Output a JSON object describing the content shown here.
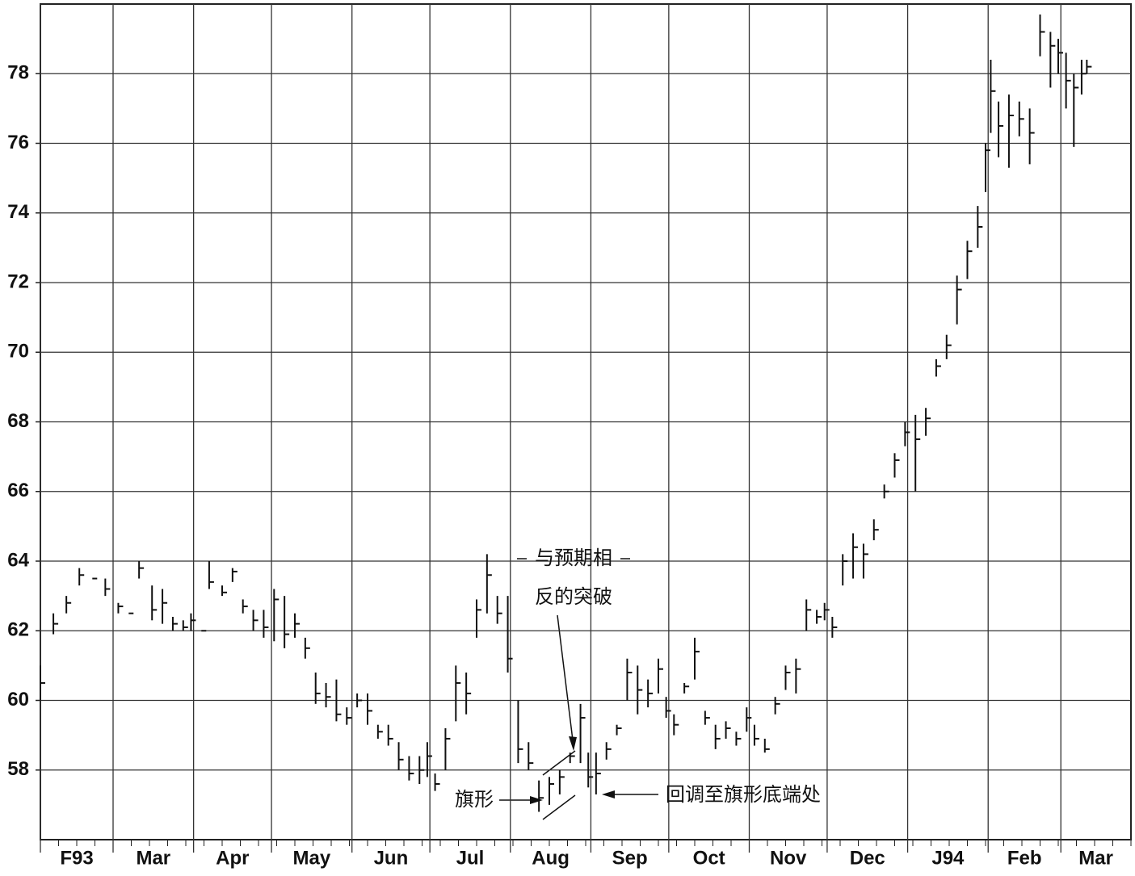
{
  "chart_data": {
    "type": "ohlc",
    "xlim": [
      0,
      420
    ],
    "ylim": [
      56,
      80
    ],
    "yticks": [
      58,
      60,
      62,
      64,
      66,
      68,
      70,
      72,
      74,
      76,
      78
    ],
    "xticks": [
      {
        "value": 0,
        "label": "F93"
      },
      {
        "value": 28,
        "label": "Mar"
      },
      {
        "value": 59,
        "label": "Apr"
      },
      {
        "value": 89,
        "label": "May"
      },
      {
        "value": 120,
        "label": "Jun"
      },
      {
        "value": 150,
        "label": "Jul"
      },
      {
        "value": 181,
        "label": "Aug"
      },
      {
        "value": 212,
        "label": "Sep"
      },
      {
        "value": 242,
        "label": "Oct"
      },
      {
        "value": 273,
        "label": "Nov"
      },
      {
        "value": 303,
        "label": "Dec"
      },
      {
        "value": 334,
        "label": "J94"
      },
      {
        "value": 365,
        "label": "Feb"
      },
      {
        "value": 393,
        "label": "Mar"
      }
    ],
    "grid": true,
    "color": "#111111",
    "x": [
      0,
      5,
      10,
      15,
      20,
      25,
      30,
      34,
      38,
      43,
      47,
      51,
      55,
      58,
      62,
      65,
      70,
      74,
      78,
      82,
      86,
      90,
      94,
      98,
      102,
      106,
      110,
      114,
      118,
      122,
      126,
      130,
      134,
      138,
      142,
      146,
      149,
      152,
      156,
      160,
      164,
      168,
      172,
      176,
      180,
      184,
      188,
      192,
      196,
      200,
      204,
      208,
      211,
      214,
      218,
      222,
      226,
      230,
      234,
      238,
      241,
      244,
      248,
      252,
      256,
      260,
      264,
      268,
      272,
      275,
      279,
      283,
      287,
      291,
      295,
      299,
      302,
      305,
      309,
      313,
      317,
      321,
      325,
      329,
      333,
      337,
      341,
      345,
      349,
      353,
      357,
      361,
      364,
      366,
      369,
      373,
      377,
      381,
      385,
      389,
      392,
      395,
      398,
      401,
      403
    ],
    "high": [
      61,
      62.5,
      63,
      63.8,
      63.5,
      63.5,
      62.8,
      62.5,
      64,
      63.3,
      63.2,
      62.4,
      62.3,
      62.5,
      62,
      64,
      63.3,
      63.8,
      62.9,
      62.6,
      62.6,
      63.2,
      63,
      62.5,
      61.8,
      60.8,
      60.5,
      60.6,
      59.8,
      60.2,
      60.2,
      59.3,
      59.3,
      58.8,
      58.4,
      58.4,
      58.8,
      57.9,
      59.2,
      61,
      60.8,
      62.9,
      64.2,
      63,
      63,
      60,
      58.8,
      57.7,
      57.8,
      58,
      58.5,
      59.9,
      58.5,
      58.5,
      58.8,
      59.3,
      61.2,
      61,
      60.6,
      61.2,
      60.1,
      59.6,
      60.5,
      61.8,
      59.7,
      59.3,
      59.4,
      59.1,
      59.8,
      59.3,
      58.9,
      60.1,
      61,
      61.2,
      62.9,
      62.6,
      62.8,
      62.4,
      64.2,
      64.8,
      64.5,
      65.2,
      66.2,
      67.1,
      68,
      68.2,
      68.4,
      69.8,
      70.5,
      72.2,
      73.2,
      74.2,
      76,
      78.4,
      77.2,
      77.4,
      77.2,
      77,
      79.7,
      79.2,
      79,
      78.6,
      78,
      78.4,
      78.4
    ],
    "low": [
      60,
      61.9,
      62.5,
      63.3,
      63.5,
      63,
      62.5,
      62.5,
      63.5,
      62.3,
      62.2,
      62,
      62,
      62,
      62,
      63.2,
      63,
      63.4,
      62.5,
      62,
      61.8,
      61.7,
      61.5,
      61.8,
      61.2,
      59.9,
      59.8,
      59.4,
      59.3,
      59.8,
      59.3,
      58.9,
      58.7,
      58,
      57.7,
      57.6,
      57.8,
      57.4,
      58,
      59.4,
      59.6,
      61.8,
      62.5,
      62.2,
      60.8,
      58.2,
      58,
      56.8,
      57,
      57.3,
      58.2,
      58.2,
      57.5,
      57.3,
      58.3,
      59,
      60,
      59.6,
      59.8,
      60.2,
      59.5,
      59,
      60.2,
      60.6,
      59.3,
      58.6,
      58.9,
      58.7,
      59.1,
      58.7,
      58.5,
      59.6,
      60.3,
      60.2,
      62,
      62.2,
      62.3,
      61.8,
      63.3,
      63.5,
      63.5,
      64.6,
      65.8,
      66.4,
      67.3,
      66,
      67.6,
      69.3,
      69.8,
      70.8,
      72.1,
      73,
      74.6,
      76.3,
      75.6,
      75.3,
      76.2,
      75.4,
      78.5,
      77.6,
      78,
      77,
      75.9,
      77.4,
      78
    ],
    "close": [
      60.5,
      62.2,
      62.8,
      63.6,
      63.5,
      63.2,
      62.7,
      62.5,
      63.8,
      62.6,
      62.8,
      62.2,
      62.1,
      62.3,
      62,
      63.4,
      63.1,
      63.7,
      62.7,
      62.3,
      62.1,
      62.9,
      61.9,
      62.2,
      61.5,
      60.2,
      60.1,
      59.6,
      59.5,
      60,
      59.7,
      59.1,
      58.9,
      58.3,
      57.9,
      58,
      58.4,
      57.6,
      58.9,
      60.5,
      60.2,
      62.6,
      63.6,
      62.5,
      61.2,
      58.6,
      58.2,
      57.2,
      57.6,
      57.8,
      58.4,
      59.5,
      57.8,
      57.9,
      58.6,
      59.2,
      60.8,
      60.3,
      60.2,
      60.9,
      59.7,
      59.3,
      60.4,
      61.4,
      59.5,
      58.9,
      59.2,
      58.9,
      59.5,
      58.9,
      58.6,
      59.9,
      60.8,
      60.9,
      62.6,
      62.4,
      62.6,
      62.1,
      64,
      64.4,
      64.2,
      64.9,
      66,
      66.9,
      67.7,
      67.5,
      68.1,
      69.6,
      70.2,
      71.8,
      72.9,
      73.6,
      75.8,
      77.5,
      76.5,
      76.8,
      76.7,
      76.3,
      79.2,
      78.8,
      78.6,
      77.8,
      77.6,
      78,
      78.2
    ],
    "annotations": [
      "与预期相",
      "反的突破",
      "旗形",
      "回调至旗形底端处"
    ]
  }
}
